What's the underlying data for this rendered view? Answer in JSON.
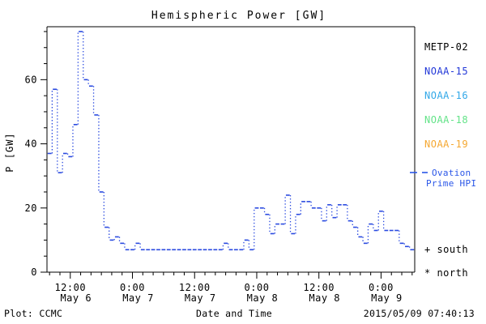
{
  "title": "Hemispheric Power [GW]",
  "legend": {
    "satellites": [
      {
        "label": "METP-02",
        "color": "#000000"
      },
      {
        "label": "NOAA-15",
        "color": "#2238d8"
      },
      {
        "label": "NOAA-16",
        "color": "#32a8e8"
      },
      {
        "label": "NOAA-18",
        "color": "#63e388"
      },
      {
        "label": "NOAA-19",
        "color": "#f5a832"
      }
    ],
    "ovation_line1": "Ovation",
    "ovation_line2": "Prime HPI",
    "ovation_color": "#2a56e8",
    "south": "+ south",
    "north": "* north"
  },
  "footer": {
    "credit": "Plot: CCMC",
    "timestamp": "2015/05/09 07:40:13"
  },
  "chart_data": {
    "type": "line",
    "subtype": "step-histogram-dotted-connectors",
    "title": "Hemispheric Power [GW]",
    "xlabel": "Date and Time",
    "ylabel": "P [GW]",
    "series_name": "Ovation Prime HPI",
    "line_color": "#2a4ae0",
    "axis_color": "#000000",
    "ylim": [
      0,
      76.5
    ],
    "xlim_hours": [
      7.5,
      78.5
    ],
    "x_epoch": "2015-05-06 00:00",
    "x_start_hour": 8,
    "step_hours": 1,
    "values": [
      37,
      57,
      31,
      37,
      36,
      46,
      75,
      60,
      58,
      49,
      25,
      14,
      10,
      11,
      9,
      7,
      7,
      9,
      7,
      7,
      7,
      7,
      7,
      7,
      7,
      7,
      7,
      7,
      7,
      7,
      7,
      7,
      7,
      7,
      9,
      7,
      7,
      7,
      10,
      7,
      20,
      20,
      18,
      12,
      15,
      15,
      24,
      12,
      18,
      22,
      22,
      20,
      20,
      16,
      21,
      17,
      21,
      21,
      16,
      14,
      11,
      9,
      15,
      13,
      19,
      13,
      13,
      13,
      9,
      8,
      7
    ],
    "x_major_ticks": [
      {
        "hour": 12,
        "line1": "12:00",
        "line2": "May 6"
      },
      {
        "hour": 24,
        "line1": "0:00",
        "line2": "May 7"
      },
      {
        "hour": 36,
        "line1": "12:00",
        "line2": "May 7"
      },
      {
        "hour": 48,
        "line1": "0:00",
        "line2": "May 8"
      },
      {
        "hour": 60,
        "line1": "12:00",
        "line2": "May 8"
      },
      {
        "hour": 72,
        "line1": "0:00",
        "line2": "May 9"
      }
    ],
    "x_minor_step_hours": 2,
    "y_major_ticks": [
      0,
      20,
      40,
      60
    ],
    "y_minor_step": 5,
    "grid": false,
    "legend_position": "right-outside"
  }
}
